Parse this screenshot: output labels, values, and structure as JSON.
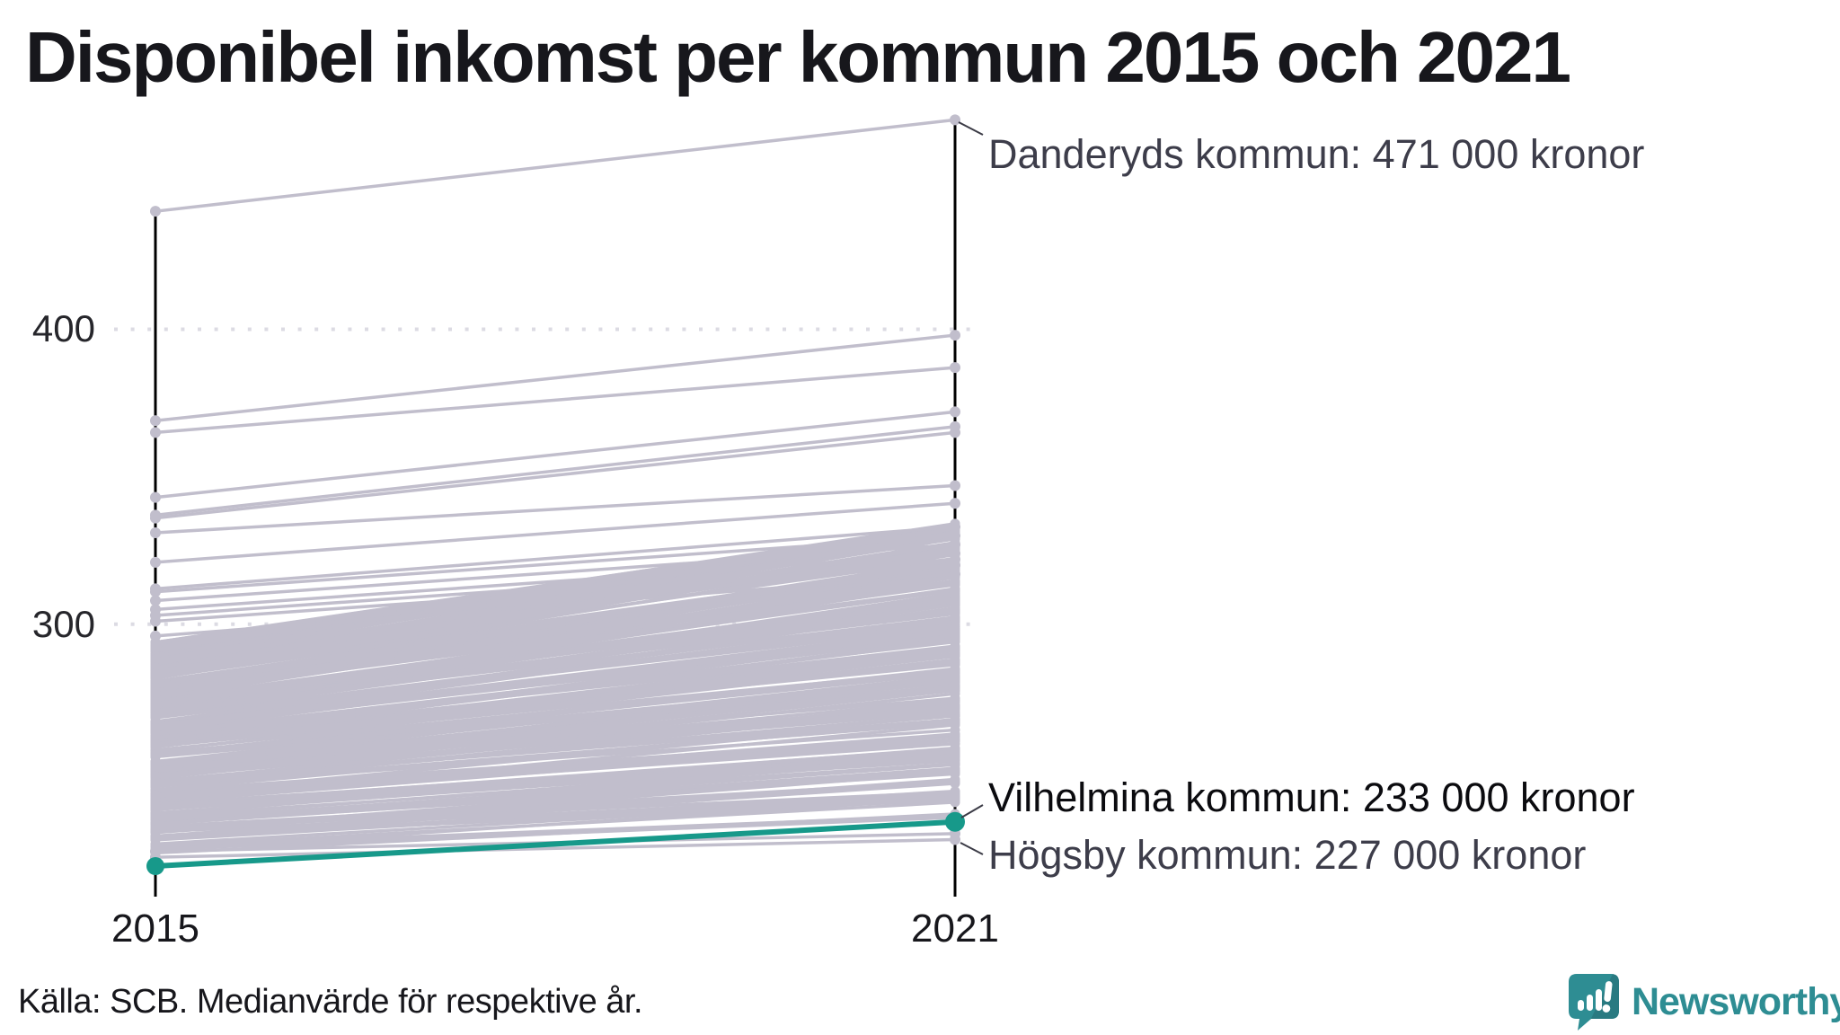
{
  "page": {
    "title": "Disponibel inkomst per kommun 2015 och 2021"
  },
  "footer": {
    "source": "Källa: SCB. Medianvärde för respektive år."
  },
  "branding": {
    "name": "Newsworthy",
    "icon": "newsworthy-speech-bubble-chart-icon"
  },
  "colors": {
    "accent_teal": "#17998a",
    "line_gray": "#c1becc",
    "axis_black": "#000000",
    "grid_gray": "#dcdbe3",
    "callout_dark": "#3b3b46",
    "text_dark": "#17171c",
    "annotation_gray": "#3d3d4a",
    "annotation_black": "#0b0b0f",
    "logo_teal": "#2e8d93",
    "logo_teal_dark": "#297a81"
  },
  "chart_data": {
    "type": "line",
    "subtype": "slopegraph",
    "title": "Disponibel inkomst per kommun 2015 och 2021",
    "x_categories": [
      "2015",
      "2021"
    ],
    "y_ticks": [
      400,
      300
    ],
    "y_unit": "tusen kronor",
    "ylim": [
      210,
      480
    ],
    "grid": "dotted horizontal lines at y ticks",
    "legend": "none",
    "annotations": [
      {
        "series": "Danderyds kommun",
        "label": "Danderyds kommun: 471 000 kronor",
        "values_2015_2021": [
          440,
          471
        ],
        "highlight": false
      },
      {
        "series": "Vilhelmina kommun",
        "label": "Vilhelmina kommun: 233 000 kronor",
        "values_2015_2021": [
          218,
          233
        ],
        "highlight": true
      },
      {
        "series": "Högsby kommun",
        "label": "Högsby kommun: 227 000 kronor",
        "values_2015_2021": [
          221,
          227
        ],
        "highlight": false
      }
    ],
    "background_lines_notable": [
      [
        369,
        398
      ],
      [
        365,
        387
      ],
      [
        343,
        372
      ],
      [
        337,
        367
      ],
      [
        336,
        365
      ],
      [
        331,
        347
      ],
      [
        321,
        341
      ],
      [
        312,
        333
      ],
      [
        311,
        330
      ],
      [
        308,
        327
      ],
      [
        305,
        324
      ],
      [
        303,
        322
      ],
      [
        301,
        320
      ],
      [
        296,
        317
      ],
      [
        223,
        229
      ]
    ],
    "background_mass_model": {
      "count": 232,
      "left_min": 222,
      "left_max": 294,
      "shape_exponent": 0.8,
      "gain_base": 8,
      "gain_slope": 0.47,
      "gain_jitter": 9,
      "right_min": 234.5,
      "right_max": 333,
      "seed": 11
    }
  }
}
